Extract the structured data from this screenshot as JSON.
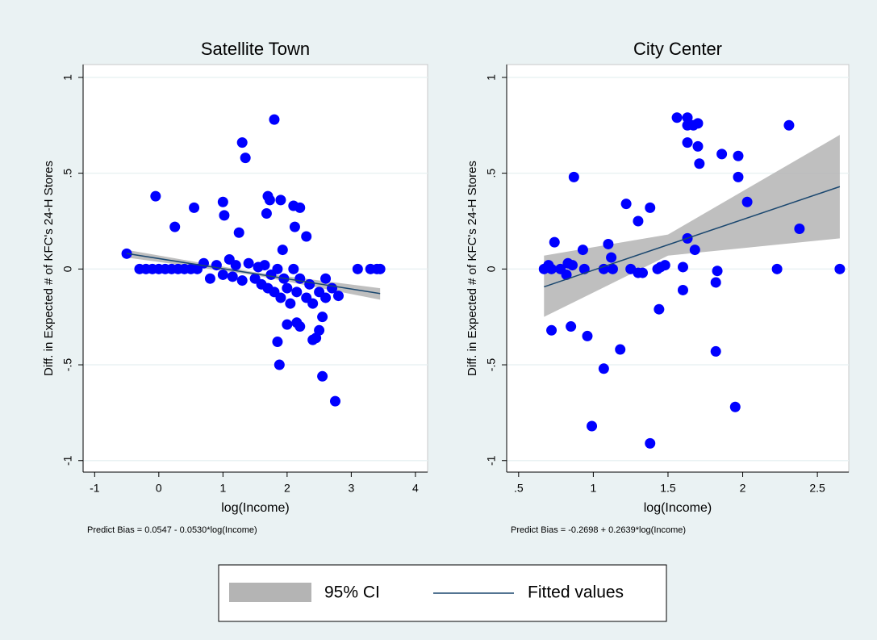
{
  "chart_data": [
    {
      "type": "scatter",
      "title": "Satellite Town",
      "xlabel": "log(Income)",
      "ylabel": "Diff. in Expected # of KFC's 24-H Stores",
      "note": "Predict Bias = 0.0547 - 0.0530*log(Income)",
      "color": "#0000ff",
      "x": [
        -0.5,
        -0.05,
        0.25,
        0.55,
        1.0,
        1.02,
        1.25,
        1.3,
        1.35,
        1.8,
        1.7,
        1.73,
        1.9,
        1.68,
        2.1,
        2.2,
        2.12,
        2.3,
        1.93,
        -0.3,
        -0.2,
        -0.1,
        0,
        0.1,
        0.2,
        0.3,
        0.4,
        0.5,
        0.6,
        3.1,
        3.3,
        3.4,
        3.45,
        0.7,
        0.8,
        0.9,
        1.0,
        1.1,
        1.15,
        1.2,
        1.3,
        1.4,
        1.5,
        1.55,
        1.6,
        1.65,
        1.7,
        1.75,
        1.8,
        1.85,
        1.9,
        1.95,
        2.0,
        2.05,
        2.1,
        2.15,
        2.2,
        2.3,
        2.35,
        2.4,
        2.5,
        2.6,
        2.7,
        2.8,
        2.6,
        2.0,
        2.15,
        2.2,
        2.4,
        2.5,
        2.45,
        2.55,
        1.85,
        1.88,
        2.55,
        2.75
      ],
      "values": [
        0.08,
        0.38,
        0.22,
        0.32,
        0.35,
        0.28,
        0.19,
        0.66,
        0.58,
        0.78,
        0.38,
        0.36,
        0.36,
        0.29,
        0.33,
        0.32,
        0.22,
        0.17,
        0.1,
        0,
        0,
        0,
        0,
        0,
        0,
        0,
        0,
        0,
        0,
        0,
        0,
        0,
        0,
        0.03,
        -0.05,
        0.02,
        -0.03,
        0.05,
        -0.04,
        0.02,
        -0.06,
        0.03,
        -0.05,
        0.01,
        -0.08,
        0.02,
        -0.1,
        -0.03,
        -0.12,
        0,
        -0.15,
        -0.05,
        -0.1,
        -0.18,
        0,
        -0.12,
        -0.05,
        -0.15,
        -0.08,
        -0.18,
        -0.12,
        -0.15,
        -0.1,
        -0.14,
        -0.05,
        -0.29,
        -0.28,
        -0.3,
        -0.37,
        -0.32,
        -0.36,
        -0.25,
        -0.38,
        -0.5,
        -0.56,
        -0.69
      ],
      "ci": {
        "x": [
          -0.5,
          1.5,
          3.45
        ],
        "lower": [
          0.06,
          -0.033,
          -0.16
        ],
        "upper": [
          0.1,
          -0.017,
          -0.1
        ],
        "color": "#b4b4b4"
      },
      "fit": {
        "x": [
          -0.5,
          3.45
        ],
        "values": [
          0.081,
          -0.128
        ],
        "color": "#1a476f"
      },
      "xlim": [
        -1.18,
        4.19
      ],
      "ylim": [
        -1.06,
        1.067
      ],
      "xticks": [
        -1,
        0,
        1,
        2,
        3,
        4
      ],
      "yticks": [
        -1,
        {
          "value": -0.5,
          "label": "-.5"
        },
        0,
        {
          "value": 0.5,
          "label": ".5"
        },
        1
      ],
      "grid": true
    },
    {
      "type": "scatter",
      "title": "City Center",
      "xlabel": "log(Income)",
      "ylabel": "Diff. in Expected # of KFC's 24-H Stores",
      "note": "Predict Bias = -0.2698 + 0.2639*log(Income)",
      "color": "#0000ff",
      "x": [
        0.67,
        0.7,
        0.72,
        0.74,
        0.78,
        0.82,
        0.83,
        0.86,
        0.87,
        0.93,
        0.94,
        1.07,
        1.1,
        1.12,
        1.13,
        1.22,
        1.25,
        1.3,
        1.3,
        1.33,
        1.38,
        1.43,
        1.45,
        1.48,
        1.56,
        1.63,
        1.63,
        1.67,
        1.7,
        1.63,
        1.7,
        1.71,
        1.86,
        1.97,
        1.97,
        2.03,
        2.31,
        2.38,
        1.63,
        1.68,
        1.6,
        1.6,
        2.23,
        2.65,
        1.83,
        1.82,
        1.44,
        0.72,
        0.85,
        0.96,
        1.18,
        1.07,
        0.99,
        1.38,
        1.82,
        1.95
      ],
      "values": [
        0,
        0.02,
        0,
        0.14,
        0,
        -0.03,
        0.03,
        0.02,
        0.48,
        0.1,
        0,
        0,
        0.13,
        0.06,
        0,
        0.34,
        0,
        -0.02,
        0.25,
        -0.02,
        0.32,
        0,
        0.01,
        0.02,
        0.79,
        0.79,
        0.75,
        0.75,
        0.76,
        0.66,
        0.64,
        0.55,
        0.6,
        0.59,
        0.48,
        0.35,
        0.75,
        0.21,
        0.16,
        0.1,
        0.01,
        -0.11,
        0,
        0,
        -0.01,
        -0.07,
        -0.21,
        -0.32,
        -0.3,
        -0.35,
        -0.42,
        -0.52,
        -0.82,
        -0.91,
        -0.43,
        -0.72
      ],
      "ci": {
        "x": [
          0.67,
          1.5,
          2.65
        ],
        "lower": [
          -0.25,
          0.07,
          0.16
        ],
        "upper": [
          0.07,
          0.18,
          0.7
        ],
        "color": "#b4b4b4"
      },
      "fit": {
        "x": [
          0.67,
          2.65
        ],
        "values": [
          -0.093,
          0.43
        ],
        "color": "#1a476f"
      },
      "xlim": [
        0.42,
        2.71
      ],
      "ylim": [
        -1.06,
        1.067
      ],
      "xticks": [
        {
          "value": 0.5,
          "label": ".5"
        },
        1,
        1.5,
        2,
        2.5
      ],
      "yticks": [
        -1,
        {
          "value": -0.5,
          "label": "-.5"
        },
        0,
        {
          "value": 0.5,
          "label": ".5"
        },
        1
      ],
      "grid": true
    }
  ],
  "legend": {
    "items": [
      {
        "name": "95% CI",
        "color": "#b4b4b4"
      },
      {
        "name": "Fitted values",
        "color": "#1a476f"
      }
    ]
  }
}
